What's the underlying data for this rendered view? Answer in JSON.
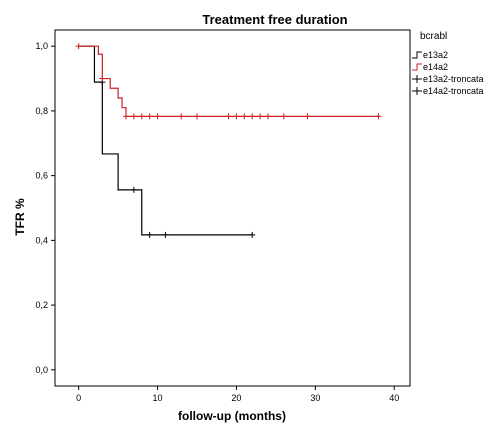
{
  "chart_data": {
    "type": "line",
    "subtype": "kaplan-meier step",
    "title": "Treatment free duration",
    "xlabel": "follow-up (months)",
    "ylabel": "TFR %",
    "xlim": [
      -3,
      42
    ],
    "ylim": [
      -0.05,
      1.05
    ],
    "x_ticks": [
      0,
      10,
      20,
      30,
      40
    ],
    "y_ticks": [
      {
        "value": 0.0,
        "label": "0,0"
      },
      {
        "value": 0.2,
        "label": "0,2"
      },
      {
        "value": 0.4,
        "label": "0,4"
      },
      {
        "value": 0.6,
        "label": "0,6"
      },
      {
        "value": 0.8,
        "label": "0,8"
      },
      {
        "value": 1.0,
        "label": "1,0"
      }
    ],
    "grid": false,
    "legend_title": "bcrabl",
    "legend_placement": "right",
    "legend_entries": [
      {
        "label": "e13a2",
        "color": "#000000",
        "marker": "step"
      },
      {
        "label": "e14a2",
        "color": "#cc2222",
        "marker": "step"
      },
      {
        "label": "e13a2-troncata",
        "color": "#000000",
        "marker": "plus"
      },
      {
        "label": "e14a2-troncata",
        "color": "#000000",
        "marker": "plus"
      }
    ],
    "series": [
      {
        "name": "e13a2",
        "color": "#000000",
        "steps": [
          [
            0,
            1.0
          ],
          [
            2,
            0.889
          ],
          [
            3,
            0.667
          ],
          [
            5,
            0.556
          ],
          [
            8,
            0.417
          ],
          [
            22,
            0.417
          ]
        ],
        "censored": [
          [
            3,
            0.889
          ],
          [
            7,
            0.556
          ],
          [
            9,
            0.417
          ],
          [
            11,
            0.417
          ],
          [
            22,
            0.417
          ]
        ]
      },
      {
        "name": "e14a2",
        "color": "#cc2222",
        "steps": [
          [
            0,
            1.0
          ],
          [
            2.5,
            0.975
          ],
          [
            3,
            0.9
          ],
          [
            4,
            0.87
          ],
          [
            5,
            0.84
          ],
          [
            5.5,
            0.81
          ],
          [
            6,
            0.783
          ],
          [
            38,
            0.783
          ]
        ],
        "censored": [
          [
            0,
            1.0
          ],
          [
            3,
            0.9
          ],
          [
            6,
            0.783
          ],
          [
            7,
            0.783
          ],
          [
            8,
            0.783
          ],
          [
            9,
            0.783
          ],
          [
            10,
            0.783
          ],
          [
            13,
            0.783
          ],
          [
            15,
            0.783
          ],
          [
            19,
            0.783
          ],
          [
            20,
            0.783
          ],
          [
            21,
            0.783
          ],
          [
            22,
            0.783
          ],
          [
            23,
            0.783
          ],
          [
            24,
            0.783
          ],
          [
            26,
            0.783
          ],
          [
            29,
            0.783
          ],
          [
            38,
            0.783
          ]
        ]
      }
    ]
  }
}
